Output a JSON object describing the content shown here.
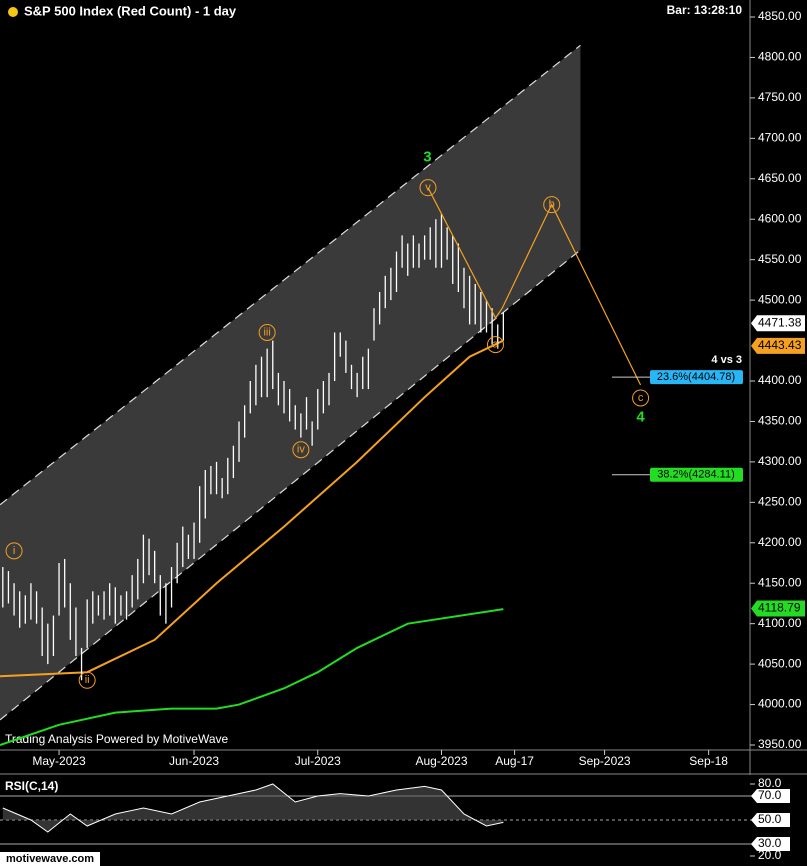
{
  "chart_data": {
    "type": "ohlc",
    "title": "S&P 500 Index (Red Count) - 1 day",
    "bar_time": "Bar: 13:28:10",
    "credit": "Trading Analysis Powered by MotiveWave",
    "site": "motivewave.com",
    "high": [
      4170,
      4165,
      4150,
      4140,
      4135,
      4150,
      4140,
      4120,
      4100,
      4110,
      4175,
      4180,
      4150,
      4120,
      4070,
      4130,
      4140,
      4135,
      4140,
      4150,
      4145,
      4135,
      4140,
      4160,
      4180,
      4210,
      4205,
      4190,
      4160,
      4150,
      4170,
      4200,
      4220,
      4210,
      4225,
      4270,
      4290,
      4295,
      4300,
      4280,
      4305,
      4320,
      4350,
      4370,
      4400,
      4420,
      4430,
      4440,
      4450,
      4410,
      4400,
      4390,
      4370,
      4360,
      4380,
      4350,
      4390,
      4400,
      4410,
      4460,
      4460,
      4450,
      4420,
      4410,
      4430,
      4440,
      4490,
      4510,
      4530,
      4540,
      4560,
      4580,
      4570,
      4580,
      4570,
      4580,
      4590,
      4600,
      4607,
      4590,
      4580,
      4570,
      4540,
      4530,
      4520,
      4510,
      4500,
      4490,
      4470,
      4485
    ],
    "low": [
      4120,
      4125,
      4110,
      4095,
      4100,
      4105,
      4100,
      4060,
      4050,
      4060,
      4110,
      4120,
      4080,
      4060,
      4030,
      4070,
      4100,
      4110,
      4105,
      4110,
      4100,
      4110,
      4105,
      4120,
      4130,
      4150,
      4160,
      4150,
      4110,
      4100,
      4120,
      4150,
      4170,
      4180,
      4180,
      4200,
      4230,
      4260,
      4260,
      4255,
      4260,
      4280,
      4300,
      4330,
      4360,
      4370,
      4380,
      4380,
      4390,
      4370,
      4360,
      4350,
      4340,
      4330,
      4340,
      4320,
      4340,
      4360,
      4370,
      4400,
      4430,
      4410,
      4390,
      4380,
      4390,
      4390,
      4450,
      4470,
      4490,
      4500,
      4510,
      4540,
      4530,
      4540,
      4540,
      4550,
      4550,
      4540,
      4540,
      4550,
      4520,
      4510,
      4490,
      4470,
      4470,
      4460,
      4460,
      4445,
      4440,
      4450
    ],
    "color": "#ffffff",
    "xlim": [
      -0.5,
      132.5
    ],
    "ylim": [
      3950,
      4850
    ],
    "xticks": [
      {
        "value": 10,
        "label": "May-2023"
      },
      {
        "value": 34,
        "label": "Jun-2023"
      },
      {
        "value": 56,
        "label": "Jul-2023"
      },
      {
        "value": 78,
        "label": "Aug-2023"
      },
      {
        "value": 91,
        "label": "Aug-17"
      },
      {
        "value": 107,
        "label": "Sep-2023"
      },
      {
        "value": 125.5,
        "label": "Sep-18"
      }
    ],
    "yticks": [
      {
        "value": 3950,
        "label": "3950.00"
      },
      {
        "value": 4000,
        "label": "4000.00"
      },
      {
        "value": 4050,
        "label": "4050.00"
      },
      {
        "value": 4100,
        "label": "4100.00"
      },
      {
        "value": 4150,
        "label": "4150.00"
      },
      {
        "value": 4200,
        "label": "4200.00"
      },
      {
        "value": 4250,
        "label": "4250.00"
      },
      {
        "value": 4300,
        "label": "4300.00"
      },
      {
        "value": 4350,
        "label": "4350.00"
      },
      {
        "value": 4400,
        "label": "4400.00"
      },
      {
        "value": 4500,
        "label": "4500.00"
      },
      {
        "value": 4550,
        "label": "4550.00"
      },
      {
        "value": 4600,
        "label": "4600.00"
      },
      {
        "value": 4650,
        "label": "4650.00"
      },
      {
        "value": 4700,
        "label": "4700.00"
      },
      {
        "value": 4750,
        "label": "4750.00"
      },
      {
        "value": 4800,
        "label": "4800.00"
      },
      {
        "value": 4850,
        "label": "4850.00"
      }
    ],
    "channel": {
      "color": "#3a3a3a",
      "upper": [
        [
          -0.5,
          4247
        ],
        [
          102.7,
          4815
        ]
      ],
      "lower": [
        [
          -0.5,
          3981
        ],
        [
          102.7,
          4562
        ]
      ]
    },
    "ma_lines": [
      {
        "color": "#f5a020",
        "x": [
          -0.5,
          15,
          27,
          38,
          50,
          63,
          75,
          83,
          89
        ],
        "values": [
          4035,
          4040,
          4080,
          4150,
          4220,
          4300,
          4380,
          4430,
          4450
        ]
      },
      {
        "color": "#22dd22",
        "x": [
          -0.5,
          10,
          20,
          30,
          38,
          42,
          50,
          56,
          63,
          72,
          89
        ],
        "values": [
          3950,
          3975,
          3990,
          3995,
          3995,
          4000,
          4020,
          4040,
          4070,
          4100,
          4118
        ]
      }
    ],
    "waves": [
      {
        "label": "i",
        "x": 2,
        "value": 4190
      },
      {
        "label": "ii",
        "x": 15,
        "value": 4030
      },
      {
        "label": "iii",
        "x": 47,
        "value": 4460
      },
      {
        "label": "iv",
        "x": 53,
        "value": 4315
      },
      {
        "label": "v",
        "x": 75.6,
        "value": 4639
      },
      {
        "label": "a",
        "x": 87.6,
        "value": 4445
      },
      {
        "label": "b",
        "x": 97.6,
        "value": 4618
      },
      {
        "label": "c",
        "x": 113.4,
        "value": 4379
      }
    ],
    "wave_color": "#f5a020",
    "degree_labels": [
      {
        "label": "3",
        "x": 75.5,
        "value": 4676
      },
      {
        "label": "4",
        "x": 113.4,
        "value": 4355
      }
    ],
    "projection": {
      "x": [
        75.6,
        87.6,
        88.8,
        97.6,
        113.4
      ],
      "values": [
        4639,
        4478,
        4490,
        4618,
        4395
      ]
    },
    "fib_title": "4 vs 3",
    "fibs": [
      {
        "label": "23.6%(4404.78)",
        "value": 4404.78,
        "color": "#29b6f6"
      },
      {
        "label": "38.2%(4284.11)",
        "value": 4284.11,
        "color": "#22dd22"
      }
    ],
    "price_tags": [
      {
        "value": 4471.38,
        "color": "#ffffff"
      },
      {
        "value": 4443.43,
        "color": "#f5a020"
      },
      {
        "value": 4118.79,
        "color": "#22dd22"
      }
    ],
    "rsi": {
      "title": "RSI(C,14)",
      "ylim": [
        20,
        80
      ],
      "yticks": [
        {
          "value": 20,
          "label": "20.0"
        },
        {
          "value": 30,
          "label": "30.0"
        },
        {
          "value": 50,
          "label": "50.0"
        },
        {
          "value": 70,
          "label": "70.0"
        },
        {
          "value": 80,
          "label": "80.0"
        }
      ],
      "x": [
        0,
        5,
        8,
        12,
        15,
        20,
        25,
        30,
        35,
        40,
        45,
        48,
        52,
        56,
        60,
        65,
        70,
        75,
        78,
        82,
        86,
        89
      ],
      "values": [
        60,
        50,
        40,
        55,
        45,
        55,
        60,
        55,
        65,
        70,
        75,
        80,
        65,
        70,
        72,
        70,
        75,
        78,
        75,
        55,
        45,
        48
      ]
    }
  }
}
